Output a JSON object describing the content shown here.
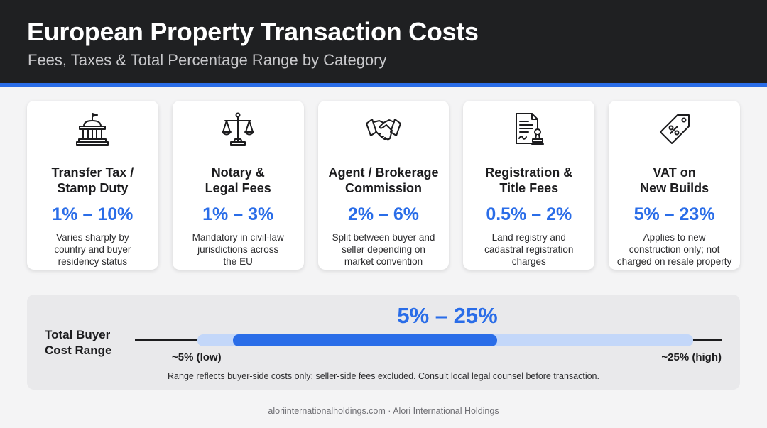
{
  "header": {
    "title": "European Property Transaction Costs",
    "subtitle": "Fees, Taxes & Total Percentage Range by Category"
  },
  "cards": [
    {
      "icon": "government-building-icon",
      "title_lines": [
        "Transfer Tax /",
        "Stamp Duty"
      ],
      "range": "1% – 10%",
      "desc_lines": [
        "Varies sharply by",
        "country and buyer",
        "residency status"
      ]
    },
    {
      "icon": "scales-of-justice-icon",
      "title_lines": [
        "Notary &",
        "Legal Fees"
      ],
      "range": "1% – 3%",
      "desc_lines": [
        "Mandatory in civil-law",
        "jurisdictions across",
        "the EU"
      ]
    },
    {
      "icon": "handshake-icon",
      "title_lines": [
        "Agent / Brokerage",
        "Commission"
      ],
      "range": "2% – 6%",
      "desc_lines": [
        "Split between buyer and",
        "seller depending on",
        "market convention"
      ]
    },
    {
      "icon": "document-stamp-icon",
      "title_lines": [
        "Registration &",
        "Title Fees"
      ],
      "range": "0.5% – 2%",
      "desc_lines": [
        "Land registry and",
        "cadastral registration",
        "charges"
      ]
    },
    {
      "icon": "percent-tag-icon",
      "title_lines": [
        "VAT on",
        "New Builds"
      ],
      "range": "5% – 23%",
      "desc_lines": [
        "Applies to new",
        "construction only; not",
        "charged on resale property"
      ]
    }
  ],
  "summary": {
    "label_lines": [
      "Total Buyer",
      "Cost Range"
    ],
    "range": "5% – 25%",
    "low_label": "~5% (low)",
    "high_label": "~25% (high)",
    "note": "Range reflects buyer-side costs only; seller-side fees excluded. Consult local legal counsel before transaction."
  },
  "footer": {
    "text": "aloriinternationalholdings.com · Alori International Holdings"
  },
  "colors": {
    "accent": "#2a6de8",
    "header_bg": "#1f2022",
    "band_light": "#c3d7f9"
  }
}
